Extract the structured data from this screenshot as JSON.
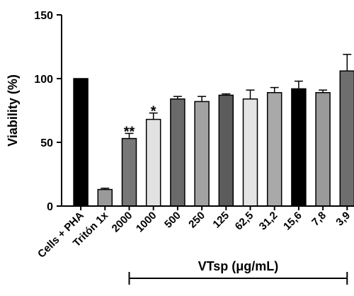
{
  "chart_data": {
    "type": "bar",
    "title": "",
    "ylabel": "Viability (%)",
    "xlabel": "",
    "ylim": [
      0,
      150
    ],
    "yticks": [
      "0",
      "50",
      "100",
      "150"
    ],
    "categories": [
      "Cells + PHA",
      "Tritón 1x",
      "2000",
      "1000",
      "500",
      "250",
      "125",
      "62,5",
      "31,2",
      "15,6",
      "7,8",
      "3,9"
    ],
    "values": [
      100,
      13,
      53,
      68,
      84,
      82,
      87,
      84,
      89,
      92,
      89,
      106
    ],
    "errors": [
      0,
      1,
      4,
      5,
      2,
      4,
      1,
      7,
      4,
      6,
      2,
      13
    ],
    "significance": [
      "",
      "",
      "**",
      "*",
      "",
      "",
      "",
      "",
      "",
      "",
      "",
      ""
    ],
    "bar_colors": [
      "#000000",
      "#9a9a9a",
      "#777777",
      "#e2e2e2",
      "#6a6a6a",
      "#a2a2a2",
      "#5c5c5c",
      "#e4e4e4",
      "#a9a9a9",
      "#000000",
      "#9a9a9a",
      "#6e6e6e"
    ],
    "group_bracket": {
      "label": "VTsp (μg/mL)",
      "from_category": "2000",
      "to_category": "3,9"
    },
    "grid": false
  }
}
